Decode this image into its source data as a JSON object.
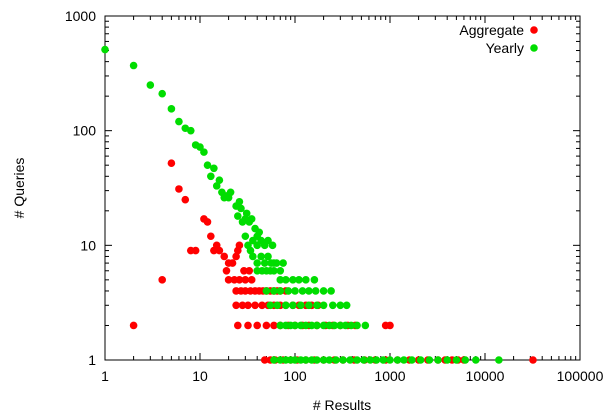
{
  "chart_data": {
    "type": "scatter",
    "title": "",
    "xlabel": "# Results",
    "ylabel": "# Queries",
    "xscale": "log",
    "yscale": "log",
    "xlim": [
      1,
      100000
    ],
    "ylim": [
      1,
      1000
    ],
    "x_ticks": [
      1,
      10,
      100,
      1000,
      10000,
      100000
    ],
    "x_tick_labels": [
      "1",
      "10",
      "100",
      "1000",
      "10000",
      "100000"
    ],
    "y_ticks": [
      1,
      10,
      100,
      1000
    ],
    "y_tick_labels": [
      "1",
      "10",
      "100",
      "1000"
    ],
    "grid": false,
    "legend_position": "top-right",
    "series": [
      {
        "name": "Aggregate",
        "color": "#ff0000",
        "points": [
          [
            2,
            2
          ],
          [
            4,
            5
          ],
          [
            5,
            52
          ],
          [
            6,
            31
          ],
          [
            7,
            25
          ],
          [
            11,
            17
          ],
          [
            12,
            16
          ],
          [
            13,
            12
          ],
          [
            15,
            10
          ],
          [
            8,
            9
          ],
          [
            9,
            9
          ],
          [
            14,
            9
          ],
          [
            16,
            9
          ],
          [
            18,
            8
          ],
          [
            20,
            7
          ],
          [
            22,
            7
          ],
          [
            19,
            6
          ],
          [
            25,
            9
          ],
          [
            24,
            8
          ],
          [
            26,
            10
          ],
          [
            20,
            5
          ],
          [
            23,
            5
          ],
          [
            26,
            5
          ],
          [
            30,
            5
          ],
          [
            35,
            5
          ],
          [
            29,
            6
          ],
          [
            33,
            6
          ],
          [
            24,
            4
          ],
          [
            27,
            4
          ],
          [
            30,
            4
          ],
          [
            34,
            4
          ],
          [
            38,
            4
          ],
          [
            42,
            4
          ],
          [
            46,
            4
          ],
          [
            50,
            4
          ],
          [
            55,
            4
          ],
          [
            60,
            4
          ],
          [
            65,
            4
          ],
          [
            70,
            4
          ],
          [
            80,
            4
          ],
          [
            24,
            3
          ],
          [
            28,
            3
          ],
          [
            32,
            3
          ],
          [
            38,
            3
          ],
          [
            45,
            3
          ],
          [
            52,
            3
          ],
          [
            60,
            3
          ],
          [
            70,
            3
          ],
          [
            80,
            3
          ],
          [
            95,
            3
          ],
          [
            110,
            3
          ],
          [
            130,
            3
          ],
          [
            150,
            3
          ],
          [
            175,
            3
          ],
          [
            25,
            2
          ],
          [
            32,
            2
          ],
          [
            40,
            2
          ],
          [
            50,
            2
          ],
          [
            60,
            2
          ],
          [
            70,
            2
          ],
          [
            85,
            2
          ],
          [
            100,
            2
          ],
          [
            120,
            2
          ],
          [
            140,
            2
          ],
          [
            170,
            2
          ],
          [
            210,
            2
          ],
          [
            250,
            2
          ],
          [
            300,
            2
          ],
          [
            360,
            2
          ],
          [
            430,
            2
          ],
          [
            900,
            2
          ],
          [
            1000,
            2
          ],
          [
            48,
            1
          ],
          [
            55,
            1
          ],
          [
            62,
            1
          ],
          [
            75,
            1
          ],
          [
            90,
            1
          ],
          [
            105,
            1
          ],
          [
            130,
            1
          ],
          [
            160,
            1
          ],
          [
            200,
            1
          ],
          [
            260,
            1
          ],
          [
            320,
            1
          ],
          [
            420,
            1
          ],
          [
            540,
            1
          ],
          [
            700,
            1
          ],
          [
            900,
            1
          ],
          [
            1200,
            1
          ],
          [
            1600,
            1
          ],
          [
            2000,
            1
          ],
          [
            2500,
            1
          ],
          [
            3200,
            1
          ],
          [
            3800,
            1
          ],
          [
            4500,
            1
          ],
          [
            5200,
            1
          ],
          [
            6000,
            1
          ],
          [
            32000,
            1
          ]
        ]
      },
      {
        "name": "Yearly",
        "color": "#00dd00",
        "points": [
          [
            1,
            510
          ],
          [
            2,
            370
          ],
          [
            3,
            250
          ],
          [
            4,
            210
          ],
          [
            5,
            155
          ],
          [
            6,
            120
          ],
          [
            7,
            105
          ],
          [
            8,
            100
          ],
          [
            9,
            75
          ],
          [
            10,
            72
          ],
          [
            11,
            65
          ],
          [
            12,
            50
          ],
          [
            13,
            40
          ],
          [
            14,
            47
          ],
          [
            15,
            33
          ],
          [
            16,
            37
          ],
          [
            17,
            29
          ],
          [
            18,
            26
          ],
          [
            19,
            27
          ],
          [
            20,
            26
          ],
          [
            21,
            29
          ],
          [
            24,
            22
          ],
          [
            25,
            18
          ],
          [
            26,
            24
          ],
          [
            27,
            21
          ],
          [
            28,
            16
          ],
          [
            30,
            17
          ],
          [
            31,
            19
          ],
          [
            33,
            16
          ],
          [
            35,
            17
          ],
          [
            38,
            14
          ],
          [
            40,
            12
          ],
          [
            42,
            13
          ],
          [
            30,
            12
          ],
          [
            32,
            10
          ],
          [
            36,
            11
          ],
          [
            40,
            10
          ],
          [
            44,
            11
          ],
          [
            48,
            10
          ],
          [
            52,
            11
          ],
          [
            58,
            10
          ],
          [
            34,
            9
          ],
          [
            36,
            8
          ],
          [
            40,
            7
          ],
          [
            44,
            8
          ],
          [
            48,
            7
          ],
          [
            52,
            8
          ],
          [
            56,
            7
          ],
          [
            60,
            7
          ],
          [
            64,
            7
          ],
          [
            70,
            6
          ],
          [
            75,
            7
          ],
          [
            40,
            6
          ],
          [
            45,
            6
          ],
          [
            50,
            6
          ],
          [
            55,
            6
          ],
          [
            60,
            6
          ],
          [
            70,
            5
          ],
          [
            80,
            5
          ],
          [
            95,
            5
          ],
          [
            110,
            5
          ],
          [
            130,
            5
          ],
          [
            160,
            5
          ],
          [
            50,
            4
          ],
          [
            60,
            4
          ],
          [
            70,
            4
          ],
          [
            85,
            4
          ],
          [
            100,
            4
          ],
          [
            120,
            4
          ],
          [
            140,
            4
          ],
          [
            165,
            4
          ],
          [
            200,
            4
          ],
          [
            240,
            4
          ],
          [
            55,
            3
          ],
          [
            65,
            3
          ],
          [
            80,
            3
          ],
          [
            95,
            3
          ],
          [
            115,
            3
          ],
          [
            140,
            3
          ],
          [
            170,
            3
          ],
          [
            200,
            3
          ],
          [
            250,
            3
          ],
          [
            300,
            3
          ],
          [
            350,
            3
          ],
          [
            70,
            2
          ],
          [
            80,
            2
          ],
          [
            90,
            2
          ],
          [
            100,
            2
          ],
          [
            115,
            2
          ],
          [
            130,
            2
          ],
          [
            150,
            2
          ],
          [
            170,
            2
          ],
          [
            200,
            2
          ],
          [
            230,
            2
          ],
          [
            260,
            2
          ],
          [
            300,
            2
          ],
          [
            340,
            2
          ],
          [
            390,
            2
          ],
          [
            450,
            2
          ],
          [
            550,
            2
          ],
          [
            60,
            1
          ],
          [
            70,
            1
          ],
          [
            80,
            1
          ],
          [
            90,
            1
          ],
          [
            100,
            1
          ],
          [
            115,
            1
          ],
          [
            130,
            1
          ],
          [
            150,
            1
          ],
          [
            170,
            1
          ],
          [
            200,
            1
          ],
          [
            230,
            1
          ],
          [
            270,
            1
          ],
          [
            320,
            1
          ],
          [
            380,
            1
          ],
          [
            450,
            1
          ],
          [
            530,
            1
          ],
          [
            620,
            1
          ],
          [
            720,
            1
          ],
          [
            850,
            1
          ],
          [
            1000,
            1
          ],
          [
            1200,
            1
          ],
          [
            1400,
            1
          ],
          [
            1700,
            1
          ],
          [
            2100,
            1
          ],
          [
            2600,
            1
          ],
          [
            3200,
            1
          ],
          [
            4000,
            1
          ],
          [
            5000,
            1
          ],
          [
            6200,
            1
          ],
          [
            8000,
            1
          ],
          [
            14000,
            1
          ]
        ]
      }
    ]
  }
}
